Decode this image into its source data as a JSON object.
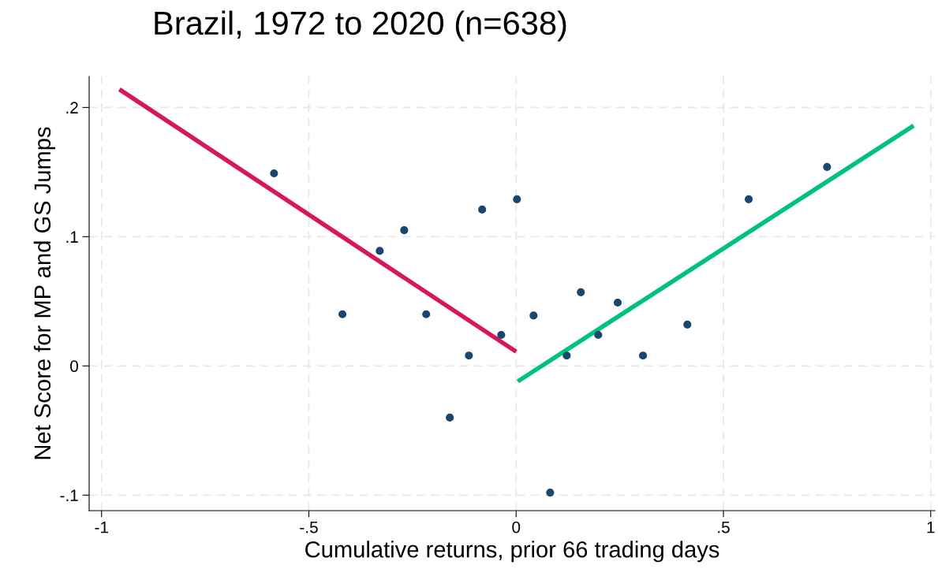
{
  "chart_data": {
    "type": "scatter",
    "title": "Brazil, 1972 to 2020 (n=638)",
    "xlabel": "Cumulative returns, prior 66 trading days",
    "ylabel": "Net Score for MP and GS Jumps",
    "series": [
      {
        "marker": "circle",
        "color": "#1a476f",
        "x": [
          -0.584,
          -0.419,
          -0.329,
          -0.27,
          -0.217,
          -0.16,
          -0.114,
          -0.082,
          -0.036,
          0.002,
          0.042,
          0.082,
          0.122,
          0.156,
          0.198,
          0.245,
          0.306,
          0.413,
          0.561,
          0.75
        ],
        "values": [
          0.149,
          0.04,
          0.089,
          0.105,
          0.04,
          -0.04,
          0.008,
          0.121,
          0.024,
          0.129,
          0.039,
          -0.098,
          0.008,
          0.057,
          0.024,
          0.049,
          0.008,
          0.032,
          0.129,
          0.154
        ]
      },
      {
        "type": "line",
        "marker": "none",
        "color": "#d6175a",
        "x": [
          -0.957,
          0.0
        ],
        "values": [
          0.214,
          0.011
        ]
      },
      {
        "type": "line",
        "marker": "none",
        "color": "#00c27a",
        "x": [
          0.004,
          0.959
        ],
        "values": [
          -0.012,
          0.186
        ]
      }
    ],
    "xlim": [
      -1.03,
      1.01
    ],
    "ylim": [
      -0.112,
      0.224
    ],
    "xticks": [
      {
        "value": -1,
        "label": "-1"
      },
      {
        "value": -0.5,
        "label": "-.5"
      },
      {
        "value": 0,
        "label": "0"
      },
      {
        "value": 0.5,
        "label": ".5"
      },
      {
        "value": 1,
        "label": "1"
      }
    ],
    "yticks": [
      {
        "value": -0.1,
        "label": "-.1"
      },
      {
        "value": 0,
        "label": "0"
      },
      {
        "value": 0.1,
        "label": ".1"
      },
      {
        "value": 0.2,
        "label": ".2"
      }
    ],
    "grid": true,
    "line_style": "solid"
  }
}
